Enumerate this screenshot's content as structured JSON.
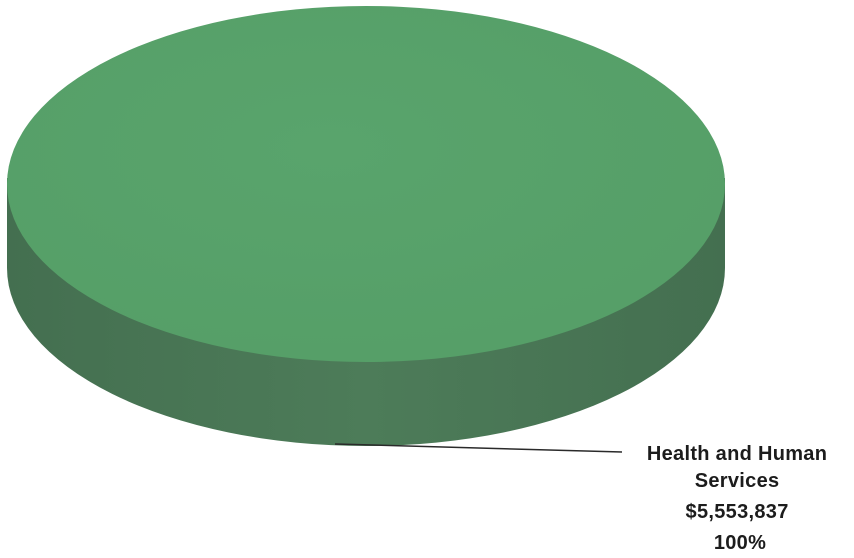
{
  "chart_data": {
    "type": "pie",
    "style": "3d",
    "slices": [
      {
        "category_lines": [
          "Health and Human",
          "Services"
        ],
        "amount": "$5,553,837",
        "percent": "100%",
        "value": 5553837,
        "share": 1.0,
        "color": "#59a46c",
        "side_color": "#4a7a57"
      }
    ]
  }
}
